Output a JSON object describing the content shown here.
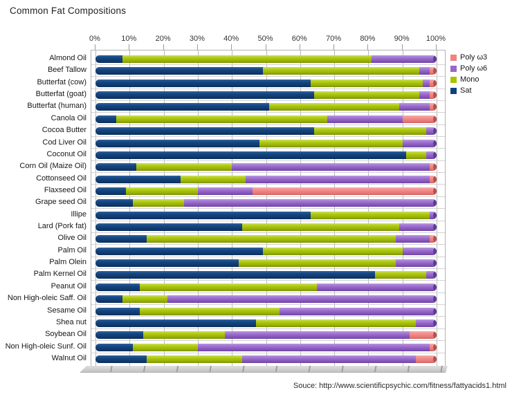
{
  "title": "Common Fat Compositions",
  "source": "Souce: http://www.scientificpsychic.com/fitness/fattyacids1.html",
  "legend": [
    {
      "label": "Poly ω3",
      "series": "w3"
    },
    {
      "label": "Poly ω6",
      "series": "w6"
    },
    {
      "label": "Mono",
      "series": "mono"
    },
    {
      "label": "Sat",
      "series": "sat"
    }
  ],
  "colors": {
    "sat": {
      "flat": "#11417d",
      "cap": "#0a2c55"
    },
    "mono": {
      "flat": "#a8c400",
      "cap": "#6f8306"
    },
    "w6": {
      "flat": "#9966cc",
      "cap": "#5e3a99"
    },
    "w3": {
      "flat": "#f0827f",
      "cap": "#b5504d"
    }
  },
  "chart_data": {
    "type": "bar",
    "orientation": "horizontal",
    "stacked": true,
    "title": "Common Fat Compositions",
    "xlabel": "",
    "ylabel": "",
    "xlim": [
      0,
      100
    ],
    "unit": "%",
    "grid": true,
    "legend_position": "top-right",
    "x_ticks": [
      "0%",
      "10%",
      "20%",
      "30%",
      "40%",
      "50%",
      "60%",
      "70%",
      "80%",
      "90%",
      "100%"
    ],
    "stack_order": [
      "sat",
      "mono",
      "w6",
      "w3"
    ],
    "categories": [
      "Almond Oil",
      "Beef Tallow",
      "Butterfat (cow)",
      "Butterfat (goat)",
      "Butterfat (human)",
      "Canola Oil",
      "Cocoa Butter",
      "Cod Liver Oil",
      "Coconut Oil",
      "Corn Oil (Maize Oil)",
      "Cottonseed Oil",
      "Flaxseed Oil",
      "Grape seed Oil",
      "Illipe",
      "Lard (Pork fat)",
      "Olive Oil",
      "Palm Oil",
      "Palm Olein",
      "Palm Kernel Oil",
      "Peanut Oil",
      "Non High-oleic Saff. Oil",
      "Sesame Oil",
      "Shea nut",
      "Soybean Oil",
      "Non High-oleic Sunf. Oil",
      "Walnut Oil"
    ],
    "series": [
      {
        "key": "sat",
        "name": "Sat",
        "values": [
          8,
          49,
          63,
          64,
          51,
          6,
          64,
          48,
          91,
          12,
          25,
          9,
          11,
          63,
          43,
          15,
          49,
          42,
          82,
          13,
          8,
          13,
          47,
          14,
          11,
          15
        ]
      },
      {
        "key": "mono",
        "name": "Mono",
        "values": [
          73,
          46,
          33,
          31,
          38,
          62,
          33,
          42,
          6,
          28,
          19,
          21,
          15,
          35,
          46,
          73,
          41,
          46,
          15,
          52,
          13,
          41,
          47,
          24,
          19,
          28
        ]
      },
      {
        "key": "w6",
        "name": "Poly ω6",
        "values": [
          19,
          3,
          2,
          3,
          9,
          22,
          3,
          10,
          3,
          58,
          54,
          16,
          74,
          2,
          11,
          10,
          10,
          12,
          3,
          35,
          79,
          46,
          6,
          54,
          68,
          51
        ]
      },
      {
        "key": "w3",
        "name": "Poly ω3",
        "values": [
          0,
          2,
          2,
          2,
          2,
          10,
          0,
          0,
          0,
          2,
          2,
          54,
          0,
          0,
          0,
          2,
          0,
          0,
          0,
          0,
          0,
          0,
          0,
          8,
          2,
          6
        ]
      }
    ]
  }
}
